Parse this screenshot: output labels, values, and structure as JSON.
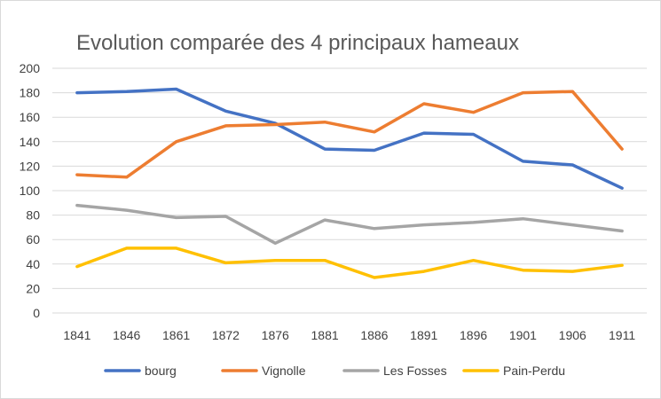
{
  "chart_data": {
    "type": "line",
    "title": "Evolution comparée des 4 principaux hameaux",
    "xlabel": "",
    "ylabel": "",
    "categories": [
      "1841",
      "1846",
      "1861",
      "1872",
      "1876",
      "1881",
      "1886",
      "1891",
      "1896",
      "1901",
      "1906",
      "1911"
    ],
    "ylim": [
      0,
      200
    ],
    "yticks": [
      0,
      20,
      40,
      60,
      80,
      100,
      120,
      140,
      160,
      180,
      200
    ],
    "grid": true,
    "legend_position": "bottom",
    "series": [
      {
        "name": "bourg",
        "color": "#4472c4",
        "values": [
          180,
          181,
          183,
          165,
          155,
          134,
          133,
          147,
          146,
          124,
          121,
          102
        ]
      },
      {
        "name": "Vignolle",
        "color": "#ed7d31",
        "values": [
          113,
          111,
          140,
          153,
          154,
          156,
          148,
          171,
          164,
          180,
          181,
          134
        ]
      },
      {
        "name": "Les Fosses",
        "color": "#a5a5a5",
        "values": [
          88,
          84,
          78,
          79,
          57,
          76,
          69,
          72,
          74,
          77,
          72,
          67
        ]
      },
      {
        "name": "Pain-Perdu",
        "color": "#ffc000",
        "values": [
          38,
          53,
          53,
          41,
          43,
          43,
          29,
          34,
          43,
          35,
          34,
          39
        ]
      }
    ]
  }
}
